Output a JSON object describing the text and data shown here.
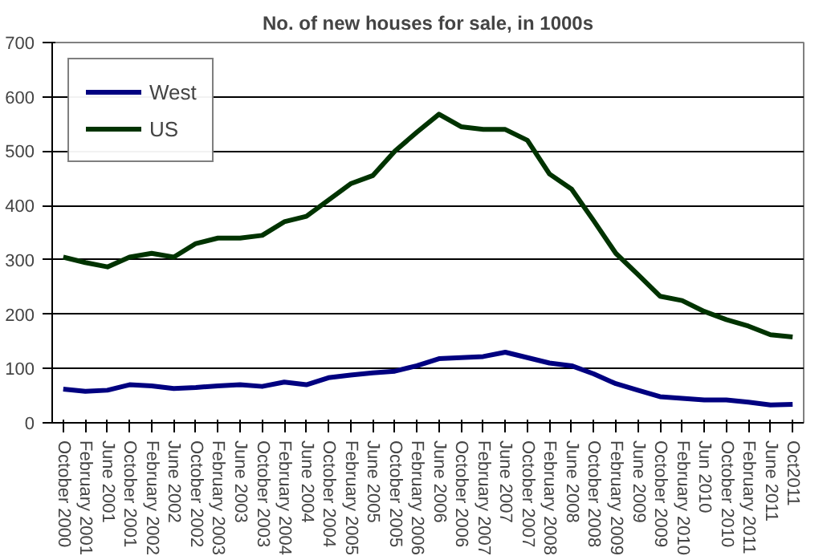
{
  "chart_data": {
    "type": "line",
    "title": "No. of new houses for sale, in 1000s",
    "categories": [
      "October 2000",
      "February 2001",
      "June 2001",
      "October 2001",
      "February 2002",
      "June 2002",
      "October 2002",
      "February 2003",
      "June 2003",
      "October 2003",
      "February 2004",
      "June 2004",
      "October 2004",
      "February 2005",
      "June 2005",
      "October 2005",
      "February 2006",
      "June 2006",
      "October 2006",
      "February 2007",
      "June 2007",
      "October 2007",
      "February 2008",
      "June 2008",
      "October 2008",
      "February 2009",
      "June 2009",
      "October 2009",
      "February 2010",
      "Jun 2010",
      "October 2010",
      "February 2011",
      "June 2011",
      "Oct2011"
    ],
    "series": [
      {
        "name": "West",
        "color": "#000080",
        "values": [
          62,
          58,
          60,
          70,
          68,
          63,
          65,
          68,
          70,
          67,
          75,
          70,
          83,
          88,
          92,
          95,
          105,
          118,
          120,
          122,
          130,
          120,
          110,
          105,
          90,
          72,
          60,
          48,
          45,
          42,
          42,
          38,
          33,
          34
        ]
      },
      {
        "name": "US",
        "color": "#003300",
        "values": [
          305,
          295,
          287,
          305,
          312,
          305,
          330,
          340,
          340,
          345,
          370,
          380,
          410,
          440,
          455,
          500,
          535,
          568,
          545,
          540,
          540,
          520,
          458,
          430,
          372,
          312,
          273,
          233,
          225,
          205,
          190,
          178,
          162,
          158
        ]
      }
    ],
    "ylim": [
      0,
      700
    ],
    "yticks": [
      0,
      100,
      200,
      300,
      400,
      500,
      600,
      700
    ],
    "grid": "y",
    "legend": "top left",
    "marker": "none",
    "line_style": "solid"
  }
}
